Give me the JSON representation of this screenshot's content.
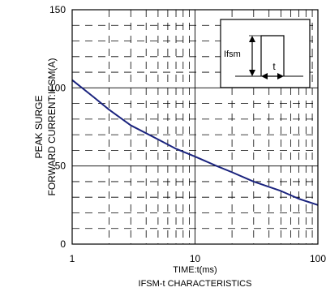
{
  "chart_data": {
    "type": "line",
    "title": "",
    "caption": "IFSM-t CHARACTERISTICS",
    "xlabel": "TIME:t(ms)",
    "ylabel_lines": [
      "PEAK SURGE",
      "FORWARD CURRENT:IFSM(A)"
    ],
    "x_scale": "log",
    "xlim": [
      1,
      100
    ],
    "ylim": [
      0,
      150
    ],
    "x_ticks": [
      1,
      10,
      100
    ],
    "x_tick_labels": [
      "1",
      "10",
      "100"
    ],
    "y_ticks": [
      0,
      50,
      100,
      150
    ],
    "y_tick_labels": [
      "0",
      "50",
      "100",
      "150"
    ],
    "grid": true,
    "series": [
      {
        "color": "#1a237e",
        "x": [
          1,
          1.5,
          2,
          3,
          5,
          7,
          10,
          15,
          20,
          30,
          50,
          70,
          100
        ],
        "y": [
          105,
          94,
          86,
          76,
          67,
          61,
          56,
          50,
          46,
          40,
          34,
          29,
          25
        ]
      }
    ],
    "inset": {
      "label": "Ifsm",
      "time_label": "t"
    }
  }
}
